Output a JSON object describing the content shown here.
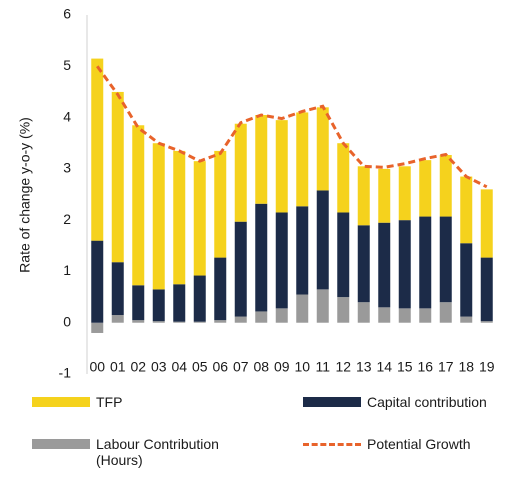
{
  "chart_data": {
    "type": "bar",
    "stacked": true,
    "y_label": "Rate of change y-o-y (%)",
    "categories": [
      "00",
      "01",
      "02",
      "03",
      "04",
      "05",
      "06",
      "07",
      "08",
      "09",
      "10",
      "11",
      "12",
      "13",
      "14",
      "15",
      "16",
      "17",
      "18",
      "19"
    ],
    "series": [
      {
        "name": "TFP",
        "color": "#f5d21d",
        "values": [
          3.55,
          3.32,
          3.12,
          2.85,
          2.6,
          2.23,
          2.08,
          1.91,
          1.73,
          1.8,
          1.83,
          1.62,
          1.35,
          1.15,
          1.05,
          1.05,
          1.1,
          1.2,
          1.3,
          1.33
        ]
      },
      {
        "name": "Capital contribution",
        "color": "#1c2b48",
        "values": [
          1.6,
          1.03,
          0.68,
          0.62,
          0.73,
          0.9,
          1.22,
          1.85,
          2.1,
          1.87,
          1.72,
          1.93,
          1.65,
          1.5,
          1.65,
          1.72,
          1.79,
          1.67,
          1.43,
          1.24
        ]
      },
      {
        "name": "Labour Contribution (Hours)",
        "color": "#9a9a9a",
        "values": [
          -0.2,
          0.15,
          0.05,
          0.03,
          0.02,
          0.02,
          0.05,
          0.12,
          0.22,
          0.28,
          0.55,
          0.65,
          0.5,
          0.4,
          0.3,
          0.28,
          0.28,
          0.4,
          0.12,
          0.03
        ]
      },
      {
        "name": "Potential Growth",
        "type": "line",
        "dashed": true,
        "color": "#e8632b",
        "values": [
          5.0,
          4.45,
          3.8,
          3.5,
          3.35,
          3.15,
          3.3,
          3.9,
          4.05,
          3.98,
          4.12,
          4.22,
          3.5,
          3.05,
          3.03,
          3.1,
          3.2,
          3.28,
          2.85,
          2.65
        ]
      }
    ],
    "ylim": [
      -1,
      6
    ],
    "yticks": [
      -1,
      0,
      1,
      2,
      3,
      4,
      5,
      6
    ]
  }
}
